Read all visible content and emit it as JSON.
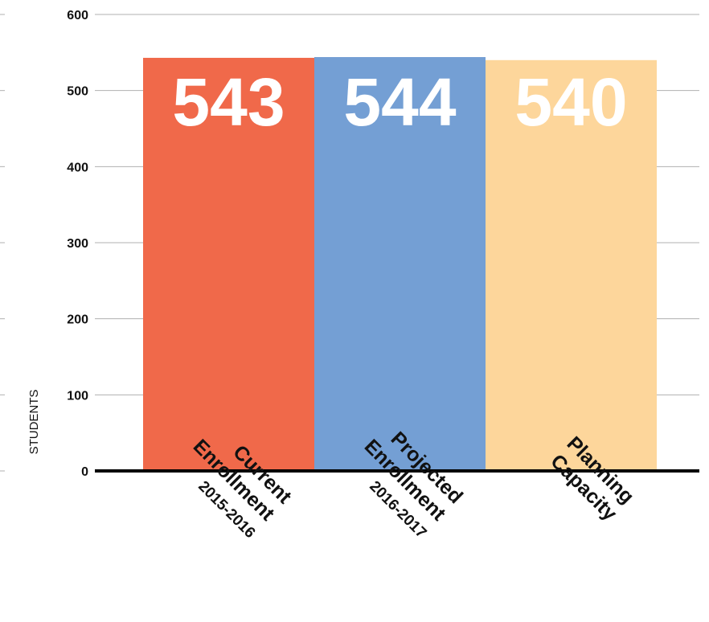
{
  "chart_data": {
    "type": "bar",
    "categories": [
      [
        "Current",
        "Enrollment",
        "2015-2016"
      ],
      [
        "Projected",
        "Enrollment",
        "2016-2017"
      ],
      [
        "Planning",
        "Capacity"
      ]
    ],
    "values": [
      543,
      544,
      540
    ],
    "data_labels": [
      "543",
      "544",
      "540"
    ],
    "bar_colors": [
      "#f0694a",
      "#749fd4",
      "#fdd69b"
    ],
    "ylabel": "STUDENTS",
    "ylim": [
      0,
      600
    ],
    "yticks": [
      0,
      100,
      200,
      300,
      400,
      500,
      600
    ],
    "ytick_labels": [
      "0",
      "100",
      "200",
      "300",
      "400",
      "500",
      "600"
    ],
    "grid": true,
    "grid_color": "#b0b0b0",
    "baseline_color": "#000000",
    "legend": "none"
  }
}
